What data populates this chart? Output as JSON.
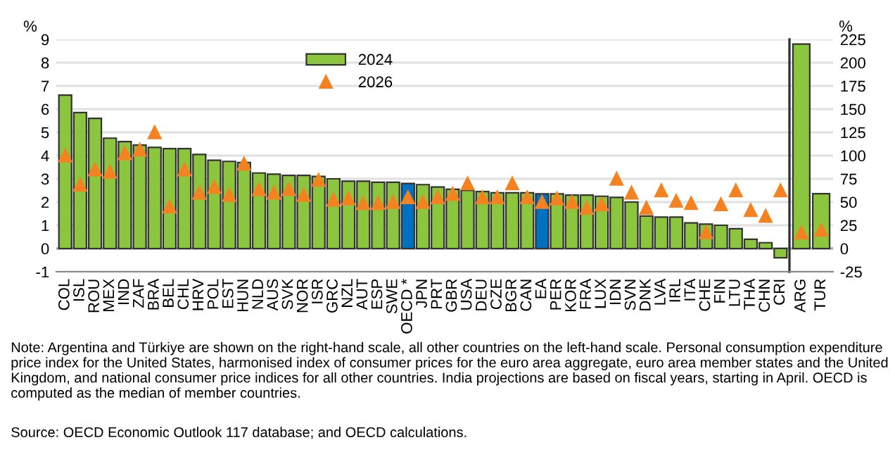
{
  "chart_data": [
    {
      "type": "bar",
      "ylabel": "%",
      "categories": [
        "COL",
        "ISL",
        "ROU",
        "MEX",
        "IND",
        "ZAF",
        "BRA",
        "BEL",
        "CHL",
        "HRV",
        "POL",
        "EST",
        "HUN",
        "NLD",
        "AUS",
        "SVK",
        "NOR",
        "ISR",
        "GRC",
        "NZL",
        "AUT",
        "ESP",
        "SWE",
        "OECD *",
        "JPN",
        "PRT",
        "GBR",
        "USA",
        "DEU",
        "CZE",
        "BGR",
        "CAN",
        "EA",
        "PER",
        "KOR",
        "FRA",
        "LUX",
        "IDN",
        "SVN",
        "DNK",
        "LVA",
        "IRL",
        "ITA",
        "CHE",
        "FIN",
        "LTU",
        "THA",
        "CHN",
        "CRI"
      ],
      "series": [
        {
          "name": "2024",
          "color": "#8cc63f",
          "colors": [
            "#8cc63f",
            "#8cc63f",
            "#8cc63f",
            "#8cc63f",
            "#8cc63f",
            "#8cc63f",
            "#8cc63f",
            "#8cc63f",
            "#8cc63f",
            "#8cc63f",
            "#8cc63f",
            "#8cc63f",
            "#8cc63f",
            "#8cc63f",
            "#8cc63f",
            "#8cc63f",
            "#8cc63f",
            "#8cc63f",
            "#8cc63f",
            "#8cc63f",
            "#8cc63f",
            "#8cc63f",
            "#8cc63f",
            "#0070c0",
            "#8cc63f",
            "#8cc63f",
            "#8cc63f",
            "#8cc63f",
            "#8cc63f",
            "#8cc63f",
            "#8cc63f",
            "#8cc63f",
            "#0070c0",
            "#8cc63f",
            "#8cc63f",
            "#8cc63f",
            "#8cc63f",
            "#8cc63f",
            "#8cc63f",
            "#8cc63f",
            "#8cc63f",
            "#8cc63f",
            "#8cc63f",
            "#8cc63f",
            "#8cc63f",
            "#8cc63f",
            "#8cc63f",
            "#8cc63f",
            "#8cc63f"
          ],
          "values": [
            6.6,
            5.85,
            5.6,
            4.75,
            4.6,
            4.45,
            4.35,
            4.3,
            4.3,
            4.05,
            3.8,
            3.75,
            3.7,
            3.25,
            3.2,
            3.15,
            3.15,
            3.1,
            3.0,
            2.9,
            2.9,
            2.85,
            2.85,
            2.8,
            2.75,
            2.65,
            2.55,
            2.5,
            2.45,
            2.4,
            2.4,
            2.4,
            2.35,
            2.35,
            2.3,
            2.3,
            2.25,
            2.2,
            2.0,
            1.4,
            1.35,
            1.35,
            1.1,
            1.05,
            1.0,
            0.85,
            0.4,
            0.25,
            -0.4
          ]
        },
        {
          "name": "2026",
          "type": "scatter",
          "color": "#f58220",
          "marker": "triangle",
          "values": [
            4.0,
            2.75,
            3.4,
            3.3,
            4.1,
            4.25,
            5.0,
            1.8,
            3.4,
            2.4,
            2.65,
            2.3,
            3.65,
            2.55,
            2.4,
            2.55,
            2.3,
            2.95,
            2.1,
            2.15,
            1.95,
            1.95,
            2.0,
            2.2,
            2.0,
            2.2,
            2.35,
            2.8,
            2.2,
            2.2,
            2.8,
            2.2,
            2.0,
            2.15,
            2.0,
            1.75,
            1.9,
            3.0,
            2.4,
            1.75,
            2.5,
            2.05,
            1.95,
            0.7,
            1.9,
            2.5,
            1.65,
            1.4,
            2.5
          ]
        }
      ],
      "ylim": [
        -1,
        9
      ],
      "yticks": [
        -1,
        0,
        1,
        2,
        3,
        4,
        5,
        6,
        7,
        8,
        9
      ],
      "grid": "y",
      "legend": "top",
      "ref_lines": [
        {
          "axis": "y",
          "value": 0,
          "color": "#a6a6a6"
        }
      ],
      "annotations": [
        "Note: Argentina and Türkiye are shown on the right-hand scale, all other countries on the left-hand scale. Personal consumption expenditure price index for the United States, harmonised index of consumer prices for the euro area aggregate, euro area member states and the United Kingdom, and national consumer price indices for all other countries. India projections are based on fiscal years, starting in April. OECD is computed as the median of member countries.",
        "Source: OECD Economic Outlook 117 database; and OECD calculations."
      ]
    },
    {
      "type": "bar",
      "ylabel": "%",
      "categories": [
        "ARG",
        "TUR"
      ],
      "series": [
        {
          "color": "#8cc63f",
          "values": [
            220,
            59
          ]
        },
        {
          "type": "scatter",
          "color": "#f58220",
          "marker": "triangle",
          "values": [
            17,
            20
          ]
        }
      ],
      "ylim": [
        -25,
        225
      ],
      "yticks": [
        -25,
        0,
        25,
        50,
        75,
        100,
        125,
        150,
        175,
        200,
        225
      ],
      "grid": "y",
      "ref_lines": [
        {
          "axis": "y",
          "value": 0,
          "color": "#a6a6a6"
        }
      ]
    }
  ]
}
